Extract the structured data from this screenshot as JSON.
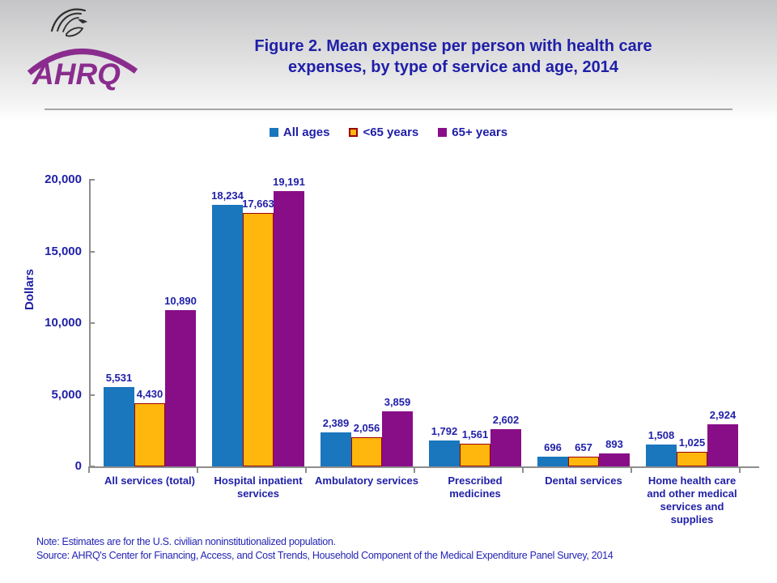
{
  "header": {
    "logo_text": "AHRQ",
    "title_line1": "Figure 2. Mean expense per person with health care",
    "title_line2": "expenses, by type of service and age, 2014"
  },
  "chart_data": {
    "type": "bar",
    "title": "Figure 2. Mean expense per person with health care expenses, by type of service and age, 2014",
    "xlabel": "",
    "ylabel": "Dollars",
    "ylim": [
      0,
      20000
    ],
    "ytick_interval": 5000,
    "ytick_labels": [
      "0",
      "5,000",
      "10,000",
      "15,000",
      "20,000"
    ],
    "grid": false,
    "legend_position": "top-center",
    "categories": [
      "All services (total)",
      "Hospital inpatient services",
      "Ambulatory services",
      "Prescribed medicines",
      "Dental services",
      "Home health care and other medical services and supplies"
    ],
    "category_lines": [
      [
        "All services (total)"
      ],
      [
        "Hospital inpatient",
        "services"
      ],
      [
        "Ambulatory services"
      ],
      [
        "Prescribed",
        "medicines"
      ],
      [
        "Dental services"
      ],
      [
        "Home health care",
        "and other medical",
        "services and",
        "supplies"
      ]
    ],
    "series": [
      {
        "name": "All ages",
        "color": "#1a76bd",
        "border": null,
        "values": [
          5531,
          18234,
          2389,
          1792,
          696,
          1508
        ]
      },
      {
        "name": "<65 years",
        "color": "#ffb60d",
        "border": "#990000",
        "values": [
          4430,
          17663,
          2056,
          1561,
          657,
          1025
        ]
      },
      {
        "name": "65+ years",
        "color": "#880e88",
        "border": null,
        "values": [
          10890,
          19191,
          3859,
          2602,
          893,
          2924
        ]
      }
    ],
    "value_labels": [
      [
        "5,531",
        "18,234",
        "2,389",
        "1,792",
        "696",
        "1,508"
      ],
      [
        "4,430",
        "17,663",
        "2,056",
        "1,561",
        "657",
        "1,025"
      ],
      [
        "10,890",
        "19,191",
        "3,859",
        "2,602",
        "893",
        "2,924"
      ]
    ]
  },
  "colors": {
    "text_blue": "#1f1fa8",
    "axis_gray": "#8e8e8e",
    "logo_purple": "#8a2c8e"
  },
  "footer": {
    "note": "Note: Estimates are for the U.S. civilian noninstitutionalized population.",
    "source": "Source: AHRQ's Center for Financing, Access, and Cost Trends, Household Component of the Medical Expenditure Panel Survey, 2014"
  }
}
